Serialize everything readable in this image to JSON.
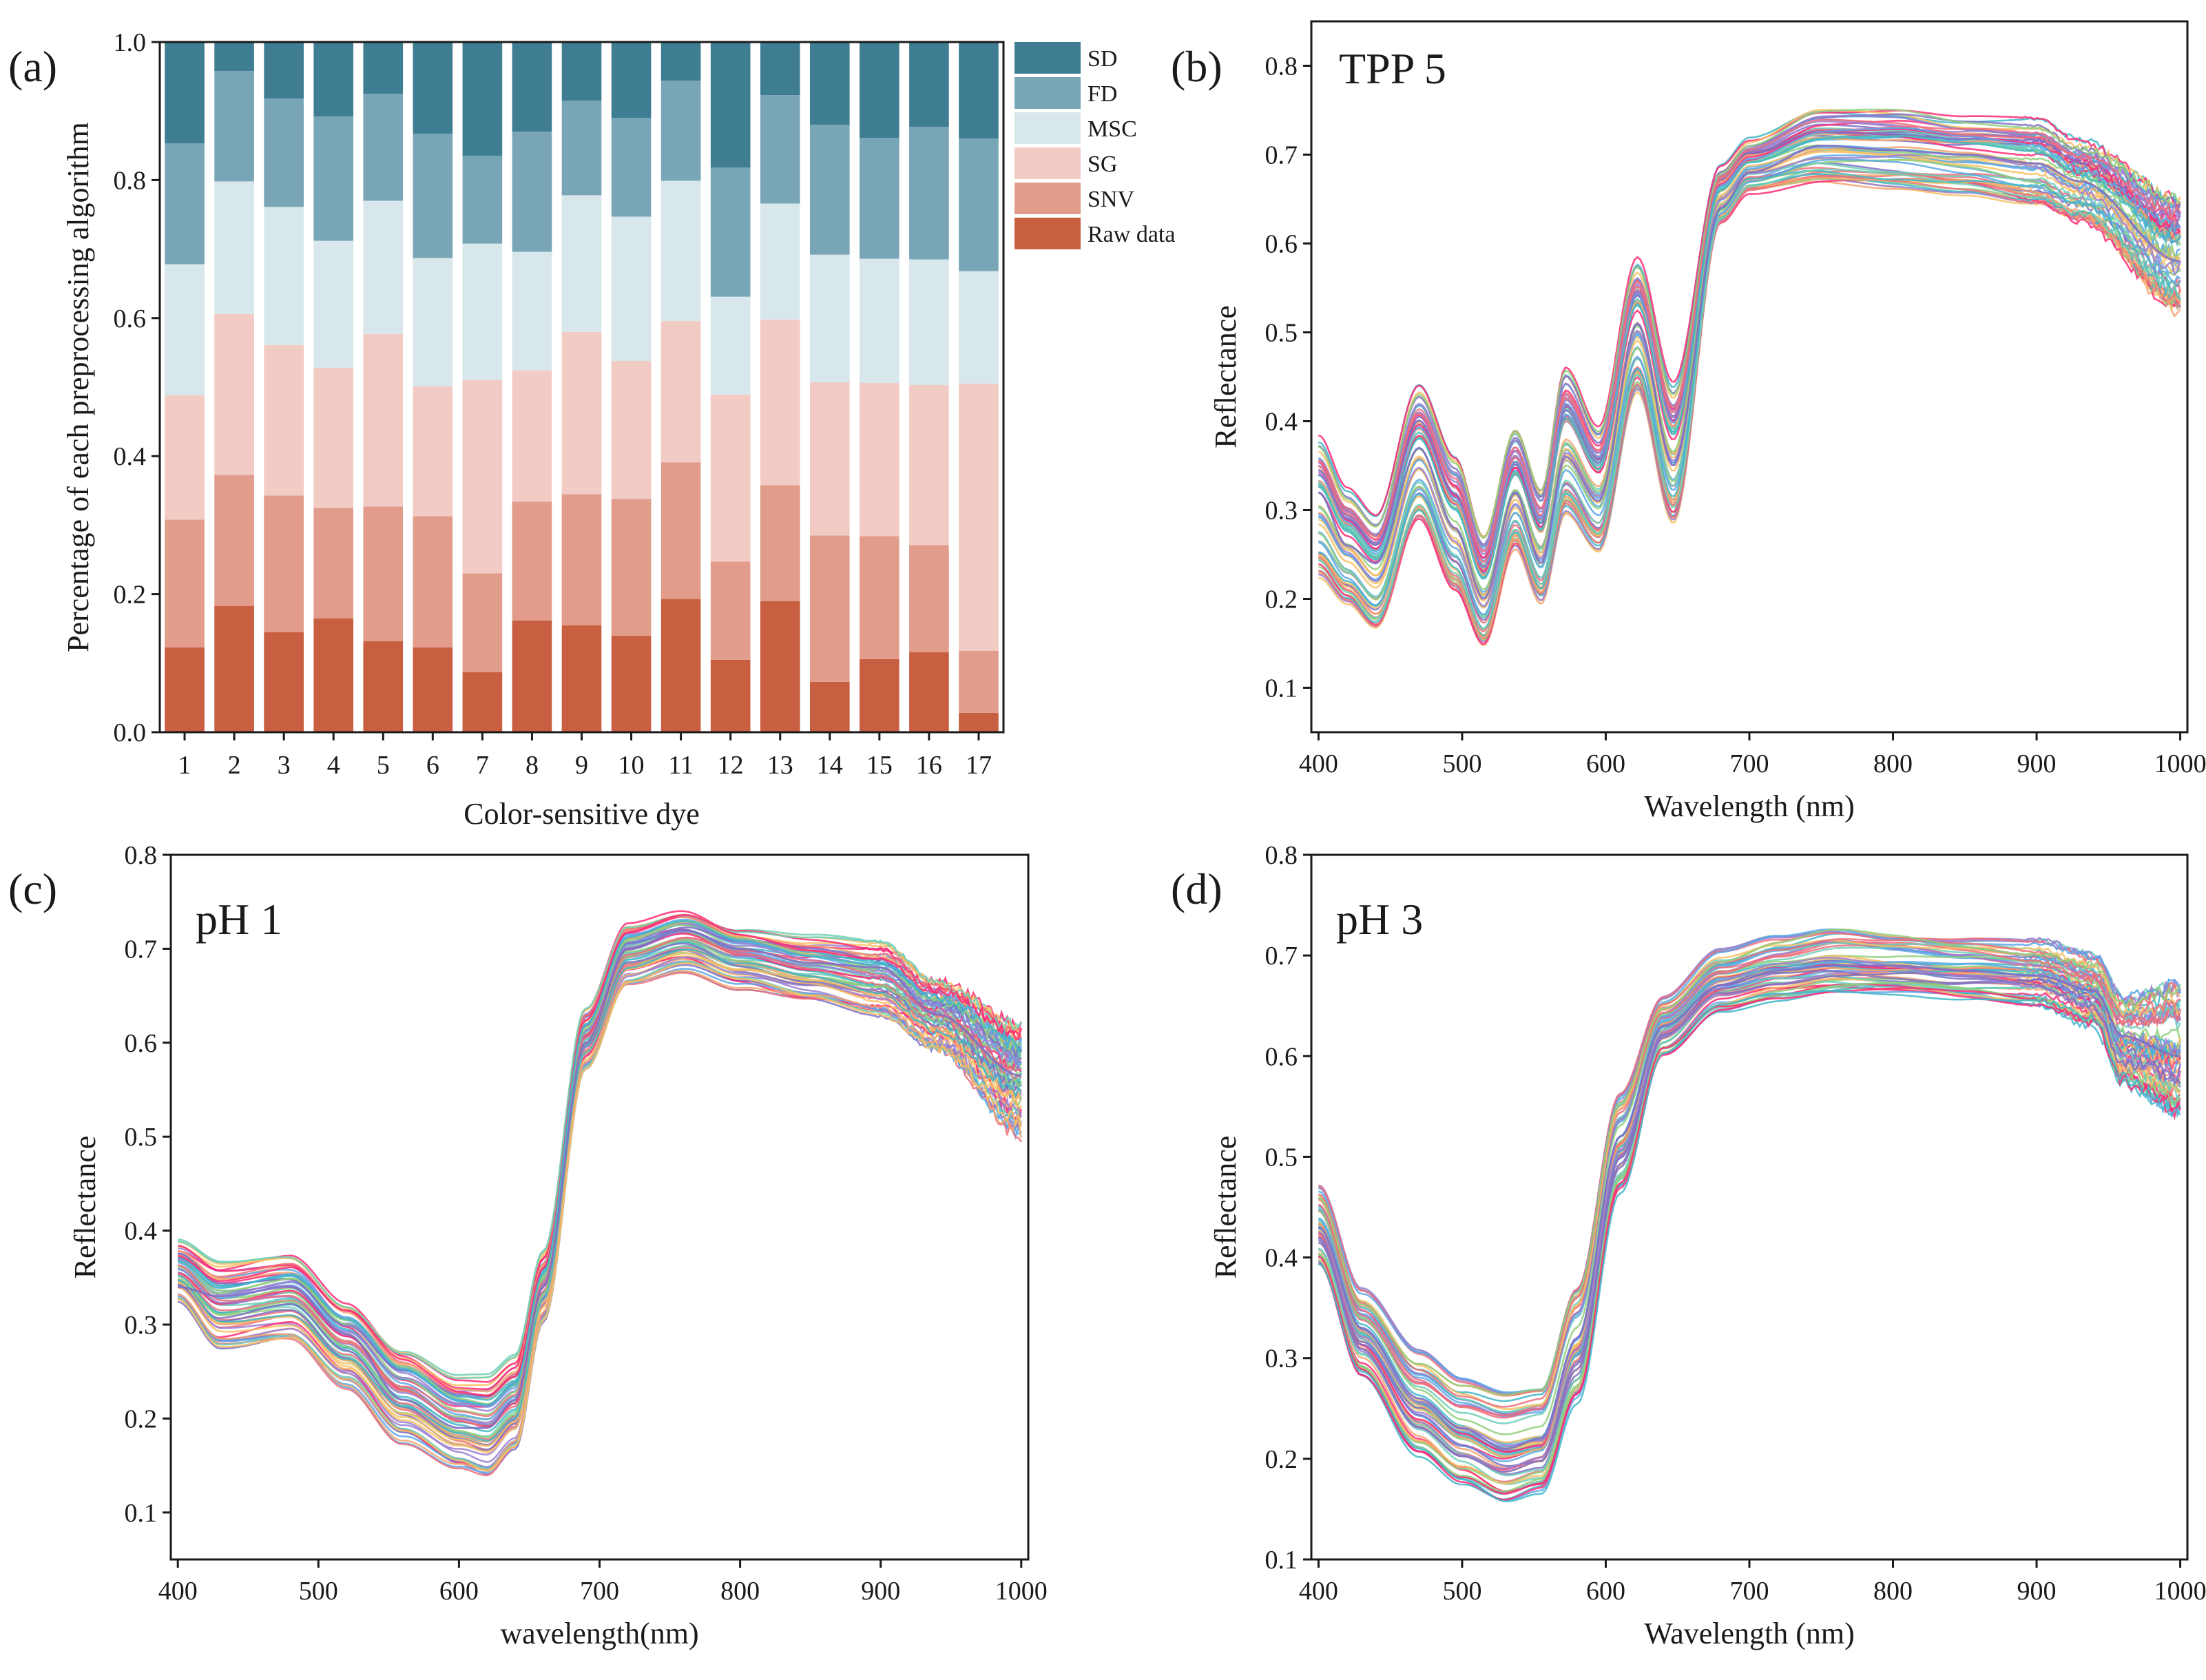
{
  "figure": {
    "colors": {
      "sd": "#3f7e92",
      "fd": "#79a6b7",
      "msc": "#d8e7ec",
      "sg": "#f1cbc4",
      "snv": "#e19c8c",
      "raw": "#c85f40",
      "axis": "#1a1a1a",
      "spectra_palette": [
        "#7d6fc4",
        "#f4a46e",
        "#6fcfb7",
        "#ff2a74",
        "#5aa7e8",
        "#f7c063",
        "#9a7fd1",
        "#ef6d7a",
        "#8fcf7a",
        "#3fb6c9"
      ]
    }
  },
  "chart_data": [
    {
      "id": "a",
      "panel_label": "(a)",
      "type": "bar",
      "stacked": true,
      "xlabel": "Color-sensitive dye",
      "ylabel": "Percentage of each preprocessing algorithm",
      "ylim": [
        0,
        1.0
      ],
      "yticks": [
        "0.0",
        "0.2",
        "0.4",
        "0.6",
        "0.8",
        "1.0"
      ],
      "categories": [
        "1",
        "2",
        "3",
        "4",
        "5",
        "6",
        "7",
        "8",
        "9",
        "10",
        "11",
        "12",
        "13",
        "14",
        "15",
        "16",
        "17"
      ],
      "legend_position": "top-right outside",
      "series": [
        {
          "name": "Raw data",
          "color_key": "raw",
          "values": [
            0.123,
            0.183,
            0.145,
            0.165,
            0.132,
            0.123,
            0.087,
            0.162,
            0.155,
            0.14,
            0.193,
            0.105,
            0.19,
            0.073,
            0.106,
            0.116,
            0.028
          ]
        },
        {
          "name": "SNV",
          "color_key": "snv",
          "values": [
            0.185,
            0.19,
            0.198,
            0.16,
            0.195,
            0.19,
            0.143,
            0.172,
            0.19,
            0.198,
            0.198,
            0.142,
            0.168,
            0.212,
            0.178,
            0.155,
            0.09
          ]
        },
        {
          "name": "SG",
          "color_key": "sg",
          "values": [
            0.18,
            0.233,
            0.218,
            0.203,
            0.25,
            0.188,
            0.28,
            0.19,
            0.235,
            0.2,
            0.205,
            0.242,
            0.24,
            0.222,
            0.222,
            0.232,
            0.387
          ]
        },
        {
          "name": "MSC",
          "color_key": "msc",
          "values": [
            0.19,
            0.192,
            0.2,
            0.184,
            0.193,
            0.186,
            0.198,
            0.172,
            0.198,
            0.209,
            0.203,
            0.142,
            0.168,
            0.185,
            0.18,
            0.182,
            0.163
          ]
        },
        {
          "name": "FD",
          "color_key": "fd",
          "values": [
            0.175,
            0.16,
            0.157,
            0.18,
            0.155,
            0.18,
            0.127,
            0.174,
            0.137,
            0.143,
            0.145,
            0.187,
            0.157,
            0.188,
            0.175,
            0.192,
            0.192
          ]
        },
        {
          "name": "SD",
          "color_key": "sd",
          "values": [
            0.147,
            0.042,
            0.082,
            0.108,
            0.075,
            0.133,
            0.165,
            0.13,
            0.085,
            0.11,
            0.056,
            0.182,
            0.077,
            0.12,
            0.139,
            0.123,
            0.14
          ]
        }
      ]
    },
    {
      "id": "b",
      "panel_label": "(b)",
      "inset_title": "TPP 5",
      "type": "line",
      "xlabel": "Wavelength (nm)",
      "ylabel": "Reflectance",
      "xlim": [
        395,
        1005
      ],
      "ylim": [
        0.05,
        0.85
      ],
      "xticks": [
        "400",
        "500",
        "600",
        "700",
        "800",
        "900",
        "1000"
      ],
      "yticks": [
        "0.1",
        "0.2",
        "0.3",
        "0.4",
        "0.5",
        "0.6",
        "0.7",
        "0.8"
      ],
      "n_spectra": 60,
      "representative": {
        "x": [
          400,
          420,
          440,
          470,
          495,
          515,
          537,
          555,
          572,
          595,
          622,
          647,
          680,
          700,
          750,
          800,
          850,
          900,
          930,
          1000
        ],
        "y": [
          0.32,
          0.26,
          0.24,
          0.37,
          0.28,
          0.2,
          0.32,
          0.24,
          0.36,
          0.31,
          0.51,
          0.35,
          0.64,
          0.68,
          0.71,
          0.705,
          0.7,
          0.69,
          0.67,
          0.58
        ]
      },
      "envelope_low": {
        "x": [
          400,
          420,
          440,
          470,
          495,
          515,
          537,
          555,
          572,
          595,
          622,
          647,
          680,
          700,
          750,
          800,
          850,
          900,
          930,
          1000
        ],
        "y": [
          0.22,
          0.19,
          0.16,
          0.28,
          0.2,
          0.14,
          0.25,
          0.19,
          0.29,
          0.25,
          0.43,
          0.28,
          0.62,
          0.655,
          0.665,
          0.66,
          0.655,
          0.64,
          0.62,
          0.52
        ]
      },
      "envelope_high": {
        "x": [
          400,
          420,
          440,
          470,
          495,
          515,
          537,
          555,
          572,
          595,
          622,
          647,
          680,
          700,
          750,
          800,
          850,
          900,
          930,
          1000
        ],
        "y": [
          0.39,
          0.33,
          0.3,
          0.45,
          0.37,
          0.28,
          0.4,
          0.33,
          0.47,
          0.4,
          0.59,
          0.45,
          0.69,
          0.72,
          0.755,
          0.755,
          0.745,
          0.745,
          0.72,
          0.66
        ]
      }
    },
    {
      "id": "c",
      "panel_label": "(c)",
      "inset_title": "pH 1",
      "type": "line",
      "xlabel": "wavelength(nm)",
      "ylabel": "Reflectance",
      "xlim": [
        395,
        1005
      ],
      "ylim": [
        0.05,
        0.8
      ],
      "xticks": [
        "400",
        "500",
        "600",
        "700",
        "800",
        "900",
        "1000"
      ],
      "yticks": [
        "0.1",
        "0.2",
        "0.3",
        "0.4",
        "0.5",
        "0.6",
        "0.7",
        "0.8"
      ],
      "n_spectra": 60,
      "representative": {
        "x": [
          400,
          430,
          480,
          520,
          560,
          600,
          620,
          640,
          660,
          690,
          720,
          760,
          800,
          850,
          900,
          940,
          1000
        ],
        "y": [
          0.34,
          0.33,
          0.34,
          0.29,
          0.22,
          0.19,
          0.19,
          0.22,
          0.34,
          0.6,
          0.7,
          0.72,
          0.7,
          0.685,
          0.68,
          0.63,
          0.565
        ]
      },
      "envelope_low": {
        "x": [
          400,
          430,
          480,
          520,
          560,
          600,
          620,
          640,
          660,
          690,
          720,
          760,
          800,
          850,
          900,
          940,
          1000
        ],
        "y": [
          0.32,
          0.27,
          0.28,
          0.23,
          0.17,
          0.14,
          0.13,
          0.16,
          0.3,
          0.57,
          0.66,
          0.675,
          0.655,
          0.64,
          0.625,
          0.59,
          0.5
        ]
      },
      "envelope_high": {
        "x": [
          400,
          430,
          480,
          520,
          560,
          600,
          620,
          640,
          660,
          690,
          720,
          760,
          800,
          850,
          900,
          940,
          1000
        ],
        "y": [
          0.39,
          0.37,
          0.38,
          0.33,
          0.28,
          0.25,
          0.25,
          0.27,
          0.38,
          0.64,
          0.73,
          0.745,
          0.725,
          0.715,
          0.71,
          0.67,
          0.63
        ]
      }
    },
    {
      "id": "d",
      "panel_label": "(d)",
      "inset_title": "pH 3",
      "type": "line",
      "xlabel": "Wavelength (nm)",
      "ylabel": "Reflectance",
      "xlim": [
        395,
        1005
      ],
      "ylim": [
        0.1,
        0.8
      ],
      "xticks": [
        "400",
        "500",
        "600",
        "700",
        "800",
        "900",
        "1000"
      ],
      "yticks": [
        "0.1",
        "0.2",
        "0.3",
        "0.4",
        "0.5",
        "0.6",
        "0.7",
        "0.8"
      ],
      "n_spectra": 60,
      "representative": {
        "x": [
          400,
          430,
          470,
          500,
          530,
          555,
          580,
          610,
          640,
          680,
          720,
          760,
          800,
          850,
          900,
          940,
          960,
          1000
        ],
        "y": [
          0.43,
          0.33,
          0.26,
          0.23,
          0.21,
          0.22,
          0.32,
          0.52,
          0.63,
          0.67,
          0.685,
          0.69,
          0.69,
          0.685,
          0.68,
          0.665,
          0.62,
          0.6
        ]
      },
      "envelope_low": {
        "x": [
          400,
          430,
          470,
          500,
          530,
          555,
          580,
          610,
          640,
          680,
          720,
          760,
          800,
          850,
          900,
          940,
          960,
          1000
        ],
        "y": [
          0.39,
          0.28,
          0.2,
          0.17,
          0.15,
          0.16,
          0.25,
          0.46,
          0.6,
          0.645,
          0.655,
          0.66,
          0.66,
          0.655,
          0.65,
          0.63,
          0.57,
          0.535
        ]
      },
      "envelope_high": {
        "x": [
          400,
          430,
          470,
          500,
          530,
          555,
          580,
          610,
          640,
          680,
          720,
          760,
          800,
          850,
          900,
          940,
          960,
          1000
        ],
        "y": [
          0.475,
          0.37,
          0.31,
          0.285,
          0.275,
          0.28,
          0.38,
          0.57,
          0.66,
          0.705,
          0.72,
          0.73,
          0.725,
          0.72,
          0.715,
          0.7,
          0.66,
          0.68
        ]
      }
    }
  ]
}
